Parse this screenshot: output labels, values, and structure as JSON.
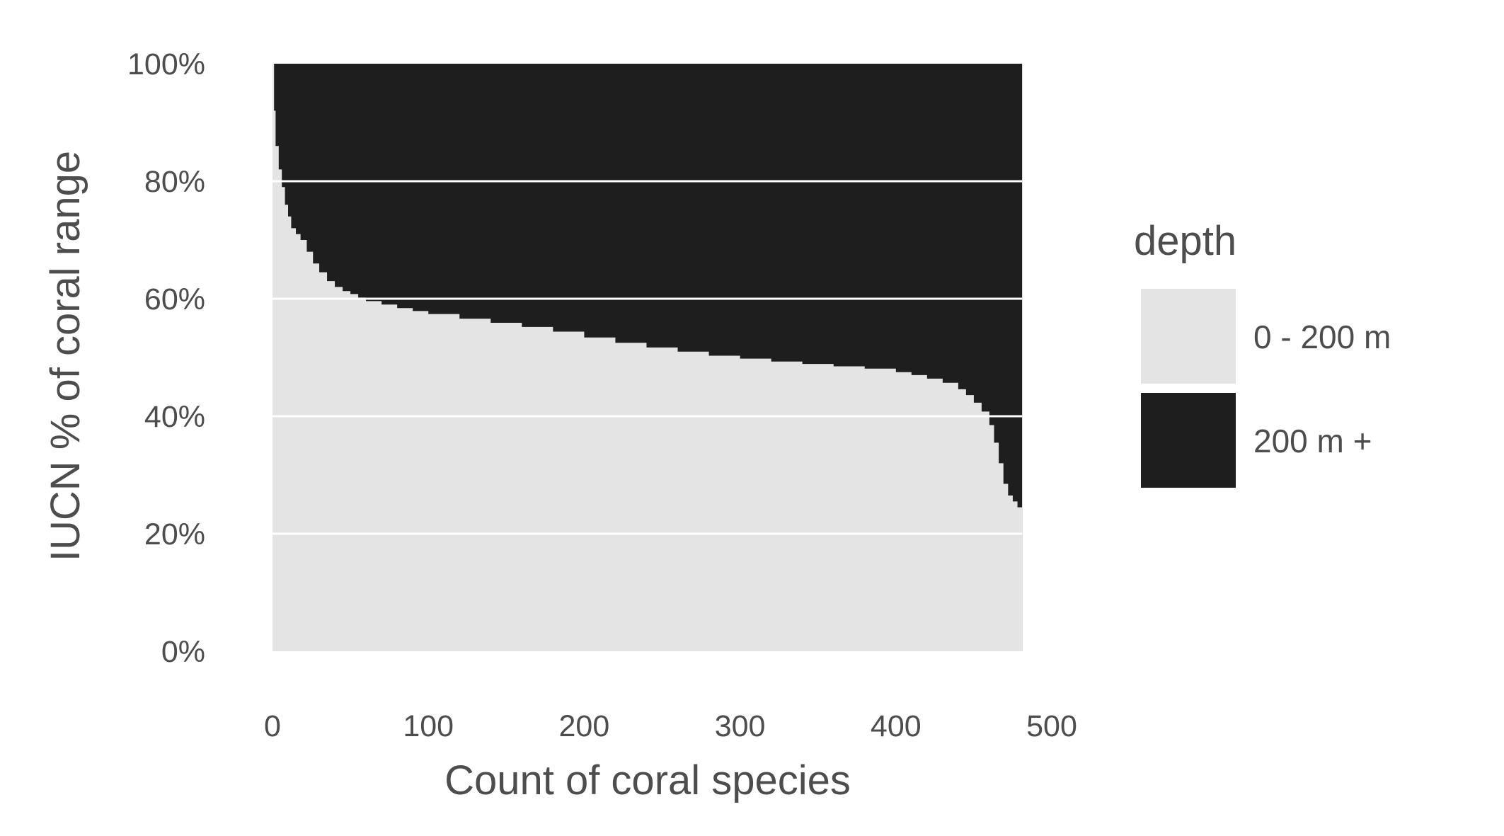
{
  "chart_data": {
    "type": "area",
    "subtype": "stacked-percent",
    "title": "",
    "xlabel": "Count of coral species",
    "ylabel": "IUCN % of coral range",
    "xlim": [
      0,
      500
    ],
    "ylim": [
      0,
      100
    ],
    "x_max_data": 481,
    "x_ticks": [
      "0",
      "100",
      "200",
      "300",
      "400",
      "500"
    ],
    "y_ticks": [
      "0%",
      "20%",
      "40%",
      "60%",
      "80%",
      "100%"
    ],
    "grid": true,
    "legend": {
      "title": "depth",
      "position": "right",
      "entries": [
        {
          "label": "0 - 200 m",
          "color": "#e4e4e4"
        },
        {
          "label": "200 m +",
          "color": "#1e1e1e"
        }
      ]
    },
    "series": [
      {
        "name": "0 - 200 m",
        "color": "#e4e4e4",
        "x": [
          0,
          1,
          2,
          4,
          6,
          8,
          10,
          12,
          15,
          18,
          22,
          26,
          30,
          35,
          40,
          45,
          50,
          55,
          60,
          70,
          80,
          90,
          100,
          120,
          140,
          160,
          180,
          200,
          220,
          240,
          260,
          280,
          300,
          320,
          340,
          360,
          380,
          400,
          410,
          420,
          430,
          440,
          445,
          450,
          455,
          460,
          463,
          466,
          469,
          472,
          475,
          478,
          481
        ],
        "y": [
          100,
          92,
          86,
          82,
          79,
          76,
          74,
          72,
          71,
          70,
          68,
          66,
          64.5,
          63,
          62,
          61.3,
          60.8,
          60.2,
          59.6,
          59,
          58.4,
          57.9,
          57.4,
          56.6,
          55.9,
          55.2,
          54.4,
          53.4,
          52.5,
          51.7,
          51,
          50.3,
          49.8,
          49.3,
          48.9,
          48.5,
          48.1,
          47.5,
          47,
          46.4,
          45.7,
          44.6,
          43.6,
          42.3,
          40.8,
          38.5,
          35.5,
          32,
          28.5,
          26.5,
          25.5,
          24.5,
          23
        ]
      },
      {
        "name": "200 m +",
        "color": "#1e1e1e",
        "fill_to": 100
      }
    ]
  }
}
